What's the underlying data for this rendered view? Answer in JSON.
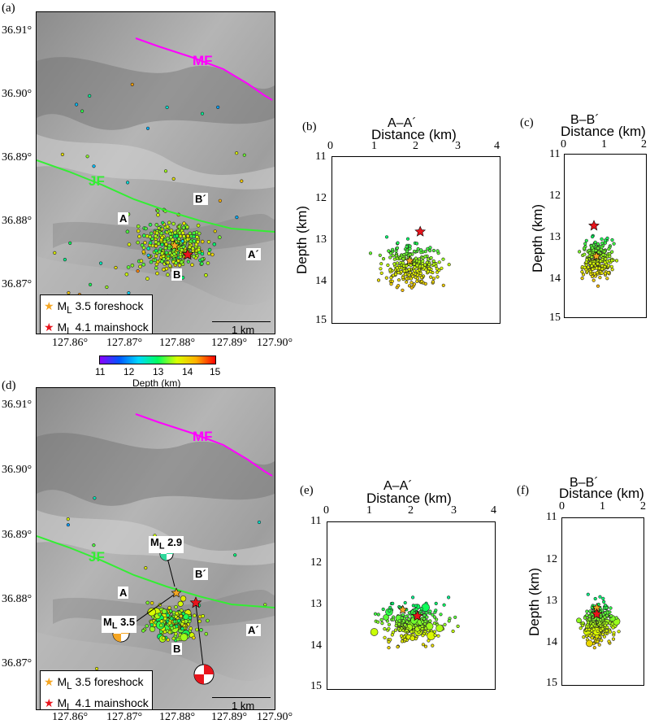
{
  "panels": {
    "a": "(a)",
    "b": "(b)",
    "c": "(c)",
    "d": "(d)",
    "e": "(e)",
    "f": "(f)"
  },
  "map": {
    "lat_ticks": [
      "36.91°",
      "36.90°",
      "36.89°",
      "36.88°",
      "36.87°"
    ],
    "lat_values": [
      36.91,
      36.9,
      36.89,
      36.88,
      36.87
    ],
    "lon_ticks": [
      "127.86°",
      "127.87°",
      "127.88°",
      "127.89°",
      "127.90°"
    ],
    "lon_values": [
      127.86,
      127.87,
      127.88,
      127.89,
      127.9
    ],
    "lat_range": [
      36.8645,
      36.9145
    ],
    "lon_range": [
      127.854,
      127.9
    ],
    "fault_mf": "MF",
    "fault_jf": "JF",
    "fault_mf_color": "#ff00ff",
    "fault_jf_color": "#33ee33",
    "point_A": "A",
    "point_A_prime": "A´",
    "point_B": "B",
    "point_B_prime": "B´",
    "scale_label": "1 km",
    "legend_foreshock_prefix": "M",
    "legend_foreshock_sub": "L",
    "legend_foreshock_text": " 3.5 foreshock",
    "legend_mainshock_prefix": "M",
    "legend_mainshock_sub": "L",
    "legend_mainshock_text": " 4.1 mainshock",
    "foreshock_color": "#f5a623",
    "mainshock_color": "#e8141c",
    "beachball_ml29_prefix": "M",
    "beachball_ml29_sub": "L",
    "beachball_ml29_text": " 2.9",
    "beachball_ml35_prefix": "M",
    "beachball_ml35_sub": "L",
    "beachball_ml35_text": " 3.5"
  },
  "colorbar": {
    "title": "Depth (km)",
    "ticks": [
      "11",
      "12",
      "13",
      "14",
      "15"
    ],
    "range": [
      11,
      15
    ]
  },
  "sections": {
    "aa_title": "A–A´",
    "bb_title": "B–B´",
    "xlabel": "Distance (km)",
    "ylabel": "Depth (km)",
    "aa_xticks": [
      "0",
      "1",
      "2",
      "3",
      "4"
    ],
    "bb_xticks": [
      "0",
      "1",
      "2"
    ],
    "yticks": [
      "11",
      "12",
      "13",
      "14",
      "15"
    ]
  },
  "chart_data": [
    {
      "type": "scatter",
      "panel": "(b)",
      "title": "A–A´",
      "xlabel": "Distance (km)",
      "ylabel": "Depth (km)",
      "xlim": [
        0,
        4
      ],
      "ylim": [
        15,
        11
      ],
      "cluster_center": [
        1.9,
        13.6
      ],
      "mainshock": {
        "x": 2.1,
        "y": 12.8
      },
      "foreshock": {
        "x": 1.85,
        "y": 13.5
      }
    },
    {
      "type": "scatter",
      "panel": "(c)",
      "title": "B–B´",
      "xlabel": "Distance (km)",
      "ylabel": "Depth (km)",
      "xlim": [
        0,
        2
      ],
      "ylim": [
        15,
        11
      ],
      "cluster_center": [
        0.8,
        13.6
      ],
      "mainshock": {
        "x": 0.72,
        "y": 12.75
      },
      "foreshock": {
        "x": 0.78,
        "y": 13.5
      }
    },
    {
      "type": "scatter",
      "panel": "(e)",
      "title": "A–A´",
      "xlabel": "Distance (km)",
      "ylabel": "Depth (km)",
      "xlim": [
        0,
        4
      ],
      "ylim": [
        15,
        11
      ],
      "cluster_center": [
        2.0,
        13.4
      ],
      "mainshock": {
        "x": 2.15,
        "y": 13.25
      },
      "foreshock": {
        "x": 1.8,
        "y": 13.1
      }
    },
    {
      "type": "scatter",
      "panel": "(f)",
      "title": "B–B´",
      "xlabel": "Distance (km)",
      "ylabel": "Depth (km)",
      "xlim": [
        0,
        2
      ],
      "ylim": [
        15,
        11
      ],
      "cluster_center": [
        0.9,
        13.5
      ],
      "mainshock": {
        "x": 0.85,
        "y": 13.3
      },
      "foreshock": {
        "x": 0.85,
        "y": 13.15
      }
    }
  ]
}
